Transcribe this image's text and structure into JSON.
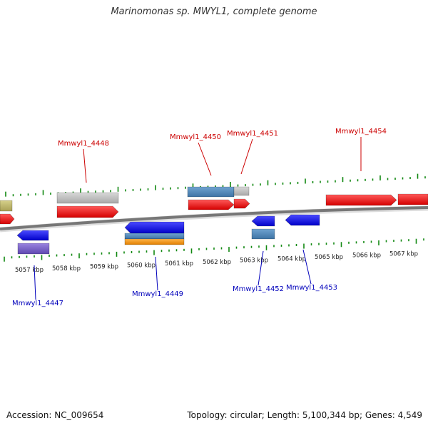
{
  "title": "Marinomonas sp. MWYL1, complete genome",
  "footer": {
    "accession": "Accession: NC_009654",
    "topology": "Topology: circular; Length: 5,100,344 bp; Genes: 4,549"
  },
  "colors": {
    "forward_gene": "#ee1111",
    "reverse_gene": "#1111ee",
    "label_forward": "#cc0000",
    "label_reverse": "#0000bb",
    "ticks": "#118811",
    "backbone": "#777777",
    "grey_feature": "#bbbbbb",
    "steel_feature": "#4f87b8",
    "purple_feature": "#7a62c8",
    "orange_feature": "#f39a17",
    "olive_feature": "#bcb56a"
  },
  "kbp_labels": [
    "5057 kbp",
    "5058 kbp",
    "5059 kbp",
    "5060 kbp",
    "5061 kbp",
    "5062 kbp",
    "5063 kbp",
    "5064 kbp",
    "5065 kbp",
    "5066 kbp",
    "5067 kbp"
  ],
  "gene_labels": {
    "forward": [
      "Mmwyl1_4448",
      "Mmwyl1_4450",
      "Mmwyl1_4451",
      "Mmwyl1_4454"
    ],
    "reverse": [
      "Mmwyl1_4447",
      "Mmwyl1_4449",
      "Mmwyl1_4452",
      "Mmwyl1_4453"
    ]
  }
}
